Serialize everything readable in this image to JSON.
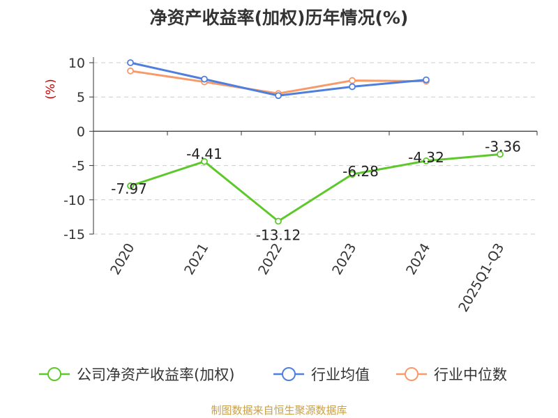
{
  "chart_data": {
    "type": "line",
    "title": "净资产收益率(加权)历年情况(%)",
    "ylabel": "(%)",
    "xlabel": "",
    "categories": [
      "2020",
      "2021",
      "2022",
      "2023",
      "2024",
      "2025Q1-Q3"
    ],
    "ylim": [
      -15,
      10
    ],
    "yticks": [
      10,
      5,
      0,
      -5,
      -10,
      -15
    ],
    "grid": true,
    "legend_position": "bottom",
    "series": [
      {
        "name": "公司净资产收益率(加权)",
        "color": "#5cc82a",
        "values": [
          -7.97,
          -4.41,
          -13.12,
          -6.28,
          -4.32,
          -3.36
        ],
        "labels": [
          "-7.97",
          "-4.41",
          "-13.12",
          "-6.28",
          "-4.32",
          "-3.36"
        ]
      },
      {
        "name": "行业均值",
        "color": "#4f7fdc",
        "values": [
          10.0,
          7.6,
          5.2,
          6.5,
          7.5,
          null
        ]
      },
      {
        "name": "行业中位数",
        "color": "#f79a6a",
        "values": [
          8.8,
          7.2,
          5.5,
          7.4,
          7.3,
          null
        ]
      }
    ],
    "source": "制图数据来自恒生聚源数据库"
  }
}
